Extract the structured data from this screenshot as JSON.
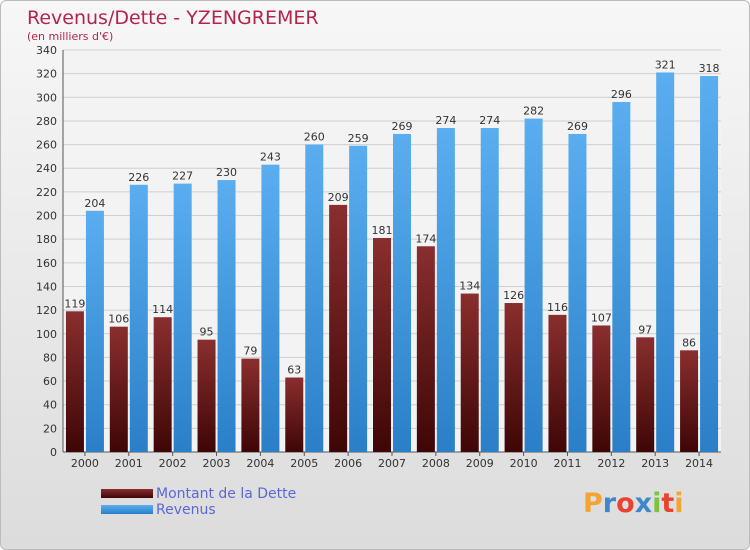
{
  "title": "Revenus/Dette - YZENGREMER",
  "subtitle": "(en milliers d'€)",
  "colors": {
    "dette": "#7a1e1e",
    "revenus": "#3d9be9",
    "title": "#b3244c"
  },
  "chart_data": {
    "type": "bar",
    "categories": [
      "2000",
      "2001",
      "2002",
      "2003",
      "2004",
      "2005",
      "2006",
      "2007",
      "2008",
      "2009",
      "2010",
      "2011",
      "2012",
      "2013",
      "2014"
    ],
    "series": [
      {
        "name": "Montant de la Dette",
        "values": [
          119,
          106,
          114,
          95,
          79,
          63,
          209,
          181,
          174,
          134,
          126,
          116,
          107,
          97,
          86
        ],
        "labels": [
          "119",
          "106",
          "114",
          "95",
          "79",
          "63",
          "209",
          "181",
          "174",
          "134",
          "126",
          "116",
          "107",
          "97",
          "86"
        ]
      },
      {
        "name": "Revenus",
        "values": [
          204,
          226,
          227,
          230,
          243,
          260,
          259,
          269,
          274,
          274,
          282,
          269,
          296,
          321,
          318
        ],
        "labels": [
          "204",
          "226",
          "227",
          "230",
          "243",
          "260",
          "259",
          "269",
          "274",
          "274",
          "282",
          "269",
          "296",
          "321",
          "318"
        ]
      }
    ],
    "ylim": [
      0,
      340
    ],
    "yticks": [
      "0",
      "20",
      "40",
      "60",
      "80",
      "100",
      "120",
      "140",
      "160",
      "180",
      "200",
      "220",
      "240",
      "260",
      "280",
      "300",
      "320",
      "340"
    ],
    "grid": true,
    "legend": "bottom-left"
  },
  "legend": {
    "dette_label": "Montant de la Dette",
    "revenus_label": "Revenus"
  },
  "brand": {
    "letters": [
      "P",
      "r",
      "o",
      "x",
      "i",
      "t",
      "i"
    ],
    "colors": [
      "#f2a533",
      "#3f87c9",
      "#e9422f",
      "#3f87c9",
      "#7ec242",
      "#e9422f",
      "#f2a533"
    ]
  }
}
